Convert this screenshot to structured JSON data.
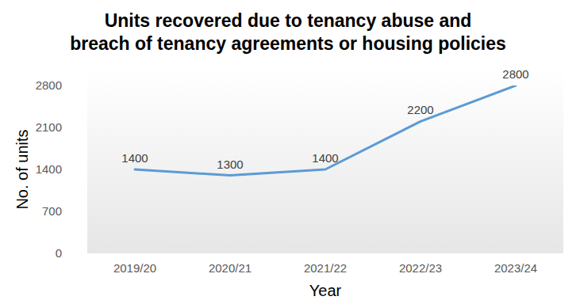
{
  "chart_data": {
    "type": "line",
    "title": "Units recovered due to tenancy abuse and\nbreach of tenancy agreements or housing policies",
    "x_label": "Year",
    "y_label": "No. of units",
    "categories": [
      "2019/20",
      "2020/21",
      "2021/22",
      "2022/23",
      "2023/24"
    ],
    "values": [
      1400,
      1300,
      1400,
      2200,
      2800
    ],
    "color": "#5b9bd5",
    "ylim": [
      0,
      2800
    ],
    "yticks": [
      0,
      700,
      1400,
      2100,
      2800
    ],
    "grid": false,
    "data_labels": true
  }
}
